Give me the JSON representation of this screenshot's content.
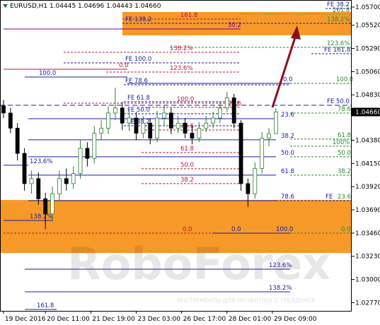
{
  "chart_data": {
    "type": "candlestick",
    "title": "EURUSD,H1  1.04445 1.04696 1.04443 1.04660",
    "watermark": {
      "title": "RoboForex",
      "tagline": "ИНСТРУМЕНТЫ ДЛЯ ПРОФИТНОГО ТРЕЙДИНГА"
    },
    "up_color": "#2d7d2d",
    "down_color": "#000000",
    "open": [
      1.0472,
      1.0465,
      1.045,
      1.0425,
      1.0395,
      1.04,
      1.038,
      1.0365,
      1.0385,
      1.04,
      1.0395,
      1.0405,
      1.043,
      1.042,
      1.0445,
      1.045,
      1.0465,
      1.047,
      1.0455,
      1.046,
      1.0445,
      1.0455,
      1.044,
      1.046,
      1.0465,
      1.045,
      1.0455,
      1.0445,
      1.044,
      1.045,
      1.0455,
      1.046,
      1.047,
      1.048,
      1.0455,
      1.0395,
      1.0385,
      1.041,
      1.044,
      1.04445
    ],
    "high": [
      1.0478,
      1.047,
      1.0455,
      1.043,
      1.0408,
      1.0406,
      1.0386,
      1.0392,
      1.0408,
      1.041,
      1.0412,
      1.0438,
      1.0436,
      1.0452,
      1.0458,
      1.0472,
      1.049,
      1.0476,
      1.0468,
      1.0466,
      1.0462,
      1.046,
      1.0467,
      1.0472,
      1.047,
      1.0462,
      1.046,
      1.0452,
      1.0456,
      1.0462,
      1.0466,
      1.0476,
      1.0486,
      1.0484,
      1.0458,
      1.04,
      1.0416,
      1.0446,
      1.045,
      1.04696
    ],
    "low": [
      1.046,
      1.0445,
      1.0418,
      1.0388,
      1.0385,
      1.0374,
      1.035,
      1.0358,
      1.0378,
      1.0388,
      1.039,
      1.04,
      1.0412,
      1.0415,
      1.0438,
      1.0444,
      1.0458,
      1.0448,
      1.0447,
      1.0438,
      1.044,
      1.0434,
      1.0436,
      1.0452,
      1.0444,
      1.0445,
      1.044,
      1.0434,
      1.0436,
      1.0446,
      1.045,
      1.0455,
      1.0466,
      1.045,
      1.0388,
      1.0372,
      1.038,
      1.0405,
      1.0432,
      1.04443
    ],
    "close": [
      1.0465,
      1.045,
      1.0425,
      1.0395,
      1.04,
      1.038,
      1.0365,
      1.0385,
      1.04,
      1.0395,
      1.0405,
      1.043,
      1.042,
      1.0445,
      1.045,
      1.0465,
      1.047,
      1.0455,
      1.046,
      1.0445,
      1.0455,
      1.044,
      1.046,
      1.0465,
      1.045,
      1.0455,
      1.0445,
      1.044,
      1.045,
      1.0455,
      1.046,
      1.047,
      1.048,
      1.0455,
      1.0395,
      1.0385,
      1.041,
      1.044,
      1.04445,
      1.0466
    ],
    "last_price": {
      "value": 1.0466,
      "label": "1.04660"
    },
    "xlim": [
      -0.5,
      49.85
    ],
    "xticks": [
      {
        "value": 0,
        "label": "19 Dec 2016"
      },
      {
        "value": 6,
        "label": "20 Dec 11:00"
      },
      {
        "value": 12.5,
        "label": "21 Dec 19:00"
      },
      {
        "value": 19,
        "label": "23 Dec 03:00"
      },
      {
        "value": 25.5,
        "label": "26 Dec 17:00"
      },
      {
        "value": 32,
        "label": "28 Dec 01:00"
      },
      {
        "value": 38.5,
        "label": "29 Dec 09:00"
      }
    ],
    "ylim": [
      1.02689,
      1.0577
    ],
    "yticks": [
      {
        "value": 1.057,
        "label": "1.05700"
      },
      {
        "value": 1.0552,
        "label": "1.05520"
      },
      {
        "value": 1.0529,
        "label": "1.05290"
      },
      {
        "value": 1.0506,
        "label": "1.05060"
      },
      {
        "value": 1.0483,
        "label": "1.04830"
      },
      {
        "value": 1.0438,
        "label": "1.04380"
      },
      {
        "value": 1.0415,
        "label": "1.04150"
      },
      {
        "value": 1.0392,
        "label": "1.03920"
      },
      {
        "value": 1.0369,
        "label": "1.03690"
      },
      {
        "value": 1.0346,
        "label": "1.03460"
      },
      {
        "value": 1.0323,
        "label": "1.03230"
      },
      {
        "value": 1.03,
        "label": "1.03000"
      },
      {
        "value": 1.0277,
        "label": "1.02770"
      }
    ],
    "zone_color": "#f7931e",
    "zones": [
      {
        "from": 1.0542,
        "to": 1.05651
      },
      {
        "from": 1.03263,
        "to": 1.03788
      }
    ],
    "levels": [
      {
        "label": "FE 38.2",
        "value": 1.05686,
        "color": "#1c1ca0"
      },
      {
        "label": "261.8",
        "value": 1.0563,
        "color": "#2e8b2e"
      },
      {
        "label": "161.8",
        "value": 1.05581,
        "color": "#c0143c"
      },
      {
        "label": "FE 138.2",
        "value": 1.05539,
        "color": "#1c1ca0"
      },
      {
        "label": "138.2%",
        "value": 1.05539,
        "color": "#2e8b2e"
      },
      {
        "label": "30.2",
        "value": 1.05483,
        "color": "#800080"
      },
      {
        "label": "123.6%",
        "value": 1.05301,
        "color": "#2e8b2e"
      },
      {
        "label": "138.2%",
        "value": 1.05252,
        "color": "#c0143c"
      },
      {
        "label": "FE 161.8",
        "value": 1.05238,
        "color": "#1c1ca0"
      },
      {
        "label": "FE 100.0",
        "value": 1.05147,
        "color": "#1c1ca0"
      },
      {
        "label": "0.0",
        "value": 1.05084,
        "color": "#c0143c"
      },
      {
        "label": "123.6%",
        "value": 1.05056,
        "color": "#c0143c"
      },
      {
        "label": "100.0",
        "value": 1.05007,
        "color": "#1c1ca0"
      },
      {
        "label": "0.0",
        "value": 1.04944,
        "color": "#1c1ca0"
      },
      {
        "label": "100.0",
        "value": 1.04944,
        "color": "#2e8b2e"
      },
      {
        "label": "FE 78.6",
        "value": 1.0493,
        "color": "#1c1ca0"
      },
      {
        "label": "100.0",
        "value": 1.04748,
        "color": "#c0143c"
      },
      {
        "label": "FE 61.8",
        "value": 1.04762,
        "color": "#1c1ca0"
      },
      {
        "label": "FE 50.0",
        "value": 1.04727,
        "color": "#1c1ca0"
      },
      {
        "label": "23.6",
        "value": 1.04706,
        "color": "#c0143c"
      },
      {
        "label": "FE 50.0",
        "value": 1.04643,
        "color": "#1c1ca0"
      },
      {
        "label": "78.6",
        "value": 1.0465,
        "color": "#2e8b2e"
      },
      {
        "label": "23.6",
        "value": 1.04594,
        "color": "#1c1ca0"
      },
      {
        "label": "FE 38.2",
        "value": 1.04524,
        "color": "#1c1ca0"
      },
      {
        "label": "78.6",
        "value": 1.04482,
        "color": "#c0143c"
      },
      {
        "label": "38.2",
        "value": 1.04384,
        "color": "#1c1ca0"
      },
      {
        "label": "61.8",
        "value": 1.04391,
        "color": "#2e8b2e"
      },
      {
        "label": "100%",
        "value": 1.04321,
        "color": "#2e8b2e"
      },
      {
        "label": "61.8",
        "value": 1.04258,
        "color": "#c0143c"
      },
      {
        "label": "50.0",
        "value": 1.04216,
        "color": "#1c1ca0"
      },
      {
        "label": "50.0",
        "value": 1.04216,
        "color": "#2e8b2e"
      },
      {
        "label": "123.6%",
        "value": 1.04132,
        "color": "#1c1ca0"
      },
      {
        "label": "50.0",
        "value": 1.04097,
        "color": "#c0143c"
      },
      {
        "label": "61.8",
        "value": 1.04034,
        "color": "#1c1ca0"
      },
      {
        "label": "38.2",
        "value": 1.04034,
        "color": "#2e8b2e"
      },
      {
        "label": "38.2",
        "value": 1.0395,
        "color": "#c0143c"
      },
      {
        "label": "78.6",
        "value": 1.03781,
        "color": "#1c1ca0"
      },
      {
        "label": "FE",
        "value": 1.03781,
        "color": "#1c1ca0"
      },
      {
        "label": "23.6",
        "value": 1.03781,
        "color": "#2e8b2e"
      },
      {
        "label": "138.2%",
        "value": 1.03585,
        "color": "#1c1ca0"
      },
      {
        "label": "0.0",
        "value": 1.03459,
        "color": "#c0143c"
      },
      {
        "label": "0.0",
        "value": 1.03459,
        "color": "#1c1ca0"
      },
      {
        "label": "100.0",
        "value": 1.03459,
        "color": "#1c1ca0"
      },
      {
        "label": "0.0",
        "value": 1.03459,
        "color": "#2e8b2e"
      },
      {
        "label": "123.6%",
        "value": 1.03102,
        "color": "#1c1ca0"
      },
      {
        "label": "138.2%",
        "value": 1.02878,
        "color": "#1c1ca0"
      },
      {
        "label": "161.8",
        "value": 1.02703,
        "color": "#1c1ca0"
      }
    ]
  }
}
